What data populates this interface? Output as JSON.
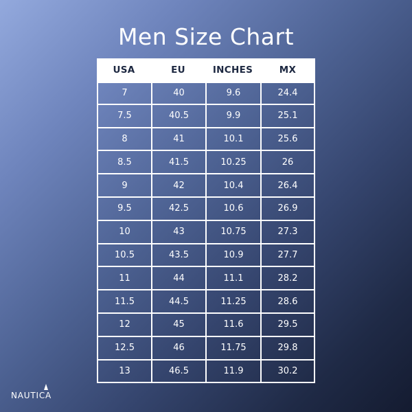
{
  "page": {
    "title": "Men Size Chart"
  },
  "table": {
    "headers": [
      "USA",
      "EU",
      "INCHES",
      "MX"
    ],
    "rows": [
      [
        "7",
        "40",
        "9.6",
        "24.4"
      ],
      [
        "7.5",
        "40.5",
        "9.9",
        "25.1"
      ],
      [
        "8",
        "41",
        "10.1",
        "25.6"
      ],
      [
        "8.5",
        "41.5",
        "10.25",
        "26"
      ],
      [
        "9",
        "42",
        "10.4",
        "26.4"
      ],
      [
        "9.5",
        "42.5",
        "10.6",
        "26.9"
      ],
      [
        "10",
        "43",
        "10.75",
        "27.3"
      ],
      [
        "10.5",
        "43.5",
        "10.9",
        "27.7"
      ],
      [
        "11",
        "44",
        "11.1",
        "28.2"
      ],
      [
        "11.5",
        "44.5",
        "11.25",
        "28.6"
      ],
      [
        "12",
        "45",
        "11.6",
        "29.5"
      ],
      [
        "12.5",
        "46",
        "11.75",
        "29.8"
      ],
      [
        "13",
        "46.5",
        "11.9",
        "30.2"
      ]
    ]
  },
  "brand": {
    "name": "NAUTICA",
    "icon": "sail-logo-icon"
  },
  "colors": {
    "header_bg": "#ffffff",
    "header_text": "#1c2740",
    "cell_text": "#ffffff",
    "gridline": "#ffffff"
  }
}
